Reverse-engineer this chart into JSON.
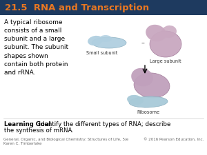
{
  "title": "21.5  RNA and Transcription",
  "title_color": "#E87722",
  "title_bg": "#1e3a5f",
  "title_fontsize": 9.5,
  "body_text": "A typical ribosome\nconsists of a small\nsubunit and a large\nsubunit. The subunit\nshapes shown\ncontain both protein\nand rRNA.",
  "body_fontsize": 6.5,
  "label_small": "Small subunit",
  "label_large": "Large subunit",
  "label_ribosome": "Ribosome",
  "learning_goal_bold": "Learning Goal",
  "learning_goal_text1": "  Identify the different types of RNA; describe",
  "learning_goal_text2": "the synthesis of mRNA.",
  "learning_goal_fontsize": 6.2,
  "footer_left": "General, Organic, and Biological Chemistry: Structures of Life, 5/e\nKaren C. Timberlake",
  "footer_right": "© 2016 Pearson Education, Inc.",
  "footer_fontsize": 4.0,
  "bg_color": "#f2f2f2",
  "content_bg": "#ffffff",
  "small_fill": "#b0cfe0",
  "small_edge": "#8aafc0",
  "large_fill": "#c9a8c0",
  "large_edge": "#a07898",
  "ribosome_large_fill": "#c0a0bc",
  "ribosome_small_fill": "#a8cad8"
}
